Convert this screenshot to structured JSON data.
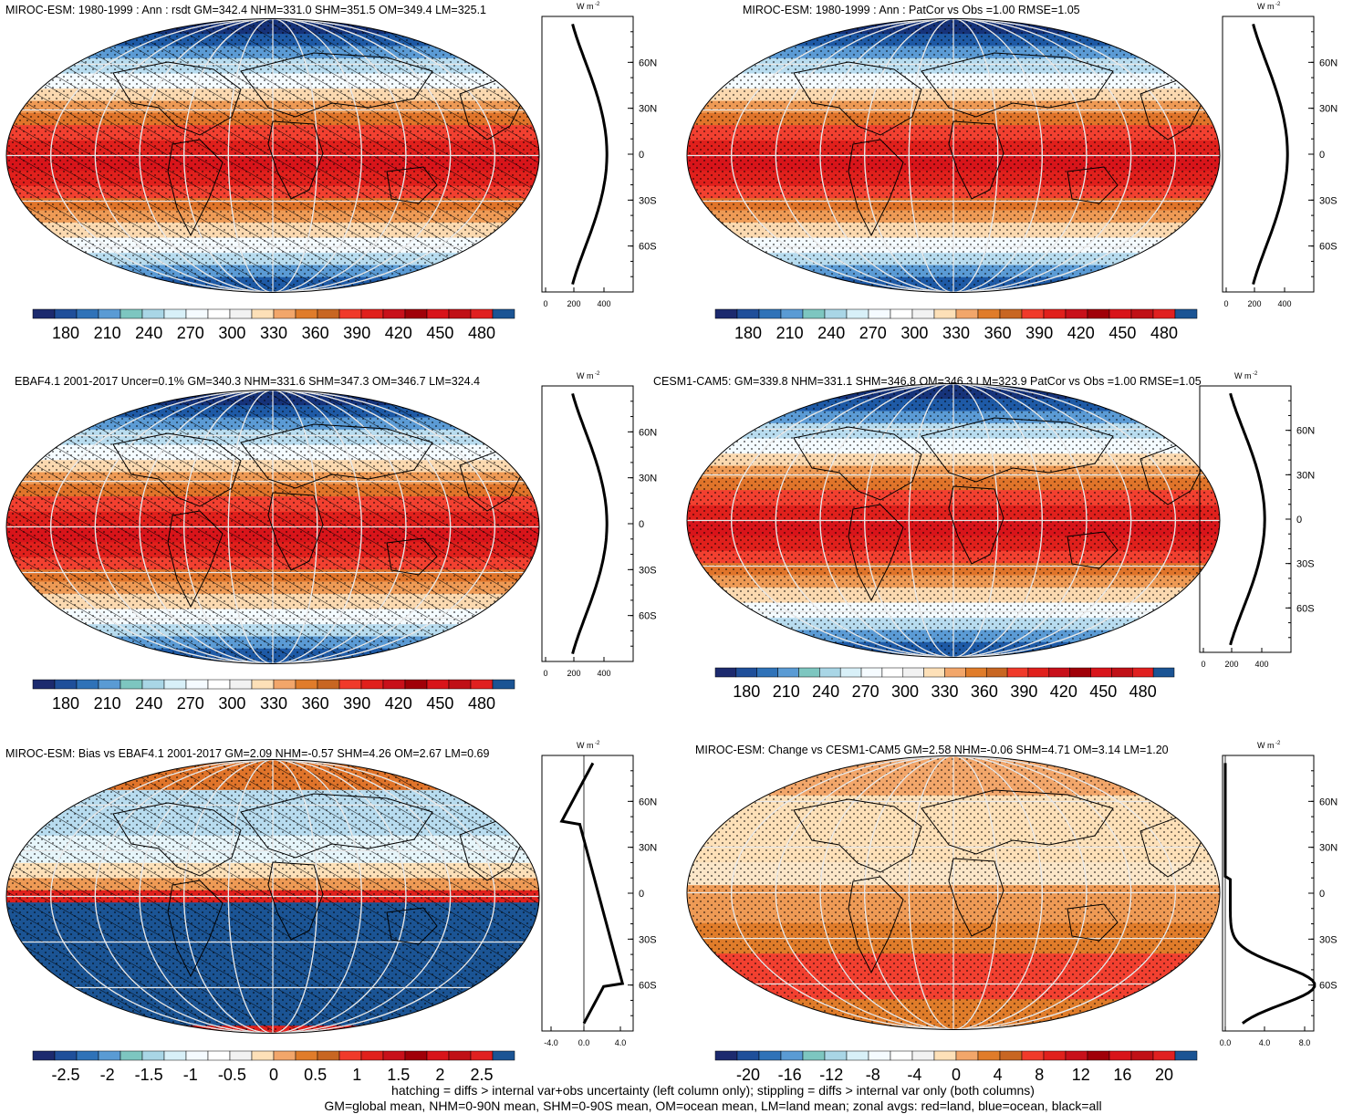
{
  "panels": [
    {
      "id": "p1",
      "title": "MIROC-ESM: 1980-1999 : Ann : rsdt GM=342.4 NHM=331.0 SHM=351.5 OM=349.4 LM=325.1",
      "field": "rsdt",
      "hatch": true,
      "stipple": true
    },
    {
      "id": "p2",
      "title": "MIROC-ESM: 1980-1999 : Ann : PatCor vs Obs =1.00 RMSE=1.05",
      "field": "rsdt",
      "hatch": false,
      "stipple": true
    },
    {
      "id": "p3",
      "title": "EBAF4.1 2001-2017 Uncer=0.1% GM=340.3 NHM=331.6 SHM=347.3 OM=346.7 LM=324.4",
      "field": "rsdt",
      "hatch": true,
      "stipple": true
    },
    {
      "id": "p4",
      "title": "CESM1-CAM5: GM=339.8 NHM=331.1 SHM=346.8 OM=346.3 LM=323.9 PatCor vs Obs =1.00 RMSE=1.05",
      "field": "rsdt",
      "hatch": false,
      "stipple": true
    },
    {
      "id": "p5",
      "title": "MIROC-ESM: Bias vs EBAF4.1 2001-2017 GM=2.09 NHM=-0.57 SHM=4.26 OM=2.67 LM=0.69",
      "field": "bias",
      "hatch": true,
      "stipple": true
    },
    {
      "id": "p6",
      "title": "MIROC-ESM: Change vs CESM1-CAM5 GM=2.58 NHM=-0.06 SHM=4.71 OM=3.14 LM=1.20",
      "field": "change",
      "hatch": false,
      "stipple": true
    }
  ],
  "zonal": {
    "unit_label": "W m",
    "unit_exp": "-2",
    "lat_labels": [
      "60N",
      "30N",
      "0",
      "30S",
      "60S"
    ],
    "ticks_abs": [
      "0",
      "200",
      "400"
    ],
    "ticks_bias": [
      "-4.0",
      "0.0",
      "4.0"
    ],
    "ticks_change": [
      "0.0",
      "4.0",
      "8.0"
    ],
    "lines": {
      "land": "red",
      "ocean": "blue",
      "all": "black"
    }
  },
  "colorbars": {
    "abs": {
      "labels": [
        "180",
        "210",
        "240",
        "270",
        "300",
        "330",
        "360",
        "390",
        "420",
        "450",
        "480"
      ],
      "colors": [
        "#1c2a6e",
        "#1f4f9a",
        "#2f72b8",
        "#5a9bd4",
        "#7dc6c0",
        "#a9d6e6",
        "#d8f0f8",
        "#f5fbff",
        "#ffffff",
        "#f2f2f2",
        "#fde0b8",
        "#f2a66a",
        "#e07c2a",
        "#c86622",
        "#f03a2a",
        "#e0201c",
        "#c8101a",
        "#a00008",
        "#d8141a",
        "#c01016",
        "#e02020",
        "#1b5494"
      ]
    },
    "bias": {
      "labels": [
        "-2.5",
        "-2",
        "-1.5",
        "-1",
        "-0.5",
        "0",
        "0.5",
        "1",
        "1.5",
        "2",
        "2.5"
      ],
      "colors": [
        "#1c2a6e",
        "#1f4f9a",
        "#2f72b8",
        "#5a9bd4",
        "#7dc6c0",
        "#a9d6e6",
        "#d8f0f8",
        "#f5fbff",
        "#ffffff",
        "#f2f2f2",
        "#fde0b8",
        "#f2a66a",
        "#e07c2a",
        "#c86622",
        "#f03a2a",
        "#e0201c",
        "#c8101a",
        "#a00008",
        "#d8141a",
        "#c01016",
        "#e02020",
        "#1b5494"
      ]
    },
    "change": {
      "labels": [
        "-20",
        "-16",
        "-12",
        "-8",
        "-4",
        "0",
        "4",
        "8",
        "12",
        "16",
        "20"
      ],
      "colors": [
        "#1c2a6e",
        "#1f4f9a",
        "#2f72b8",
        "#5a9bd4",
        "#7dc6c0",
        "#a9d6e6",
        "#d8f0f8",
        "#f5fbff",
        "#ffffff",
        "#f2f2f2",
        "#fde0b8",
        "#f2a66a",
        "#e07c2a",
        "#c86622",
        "#f03a2a",
        "#e0201c",
        "#c8101a",
        "#a00008",
        "#d8141a",
        "#c01016",
        "#e02020",
        "#1b5494"
      ]
    }
  },
  "footnote": {
    "line1": "hatching = diffs > internal var+obs uncertainty (left column only); stippling = diffs > internal var only (both columns)",
    "line2": "GM=global mean, NHM=0-90N mean, SHM=0-90S mean, OM=ocean mean, LM=land mean; zonal avgs: red=land, blue=ocean, black=all"
  }
}
